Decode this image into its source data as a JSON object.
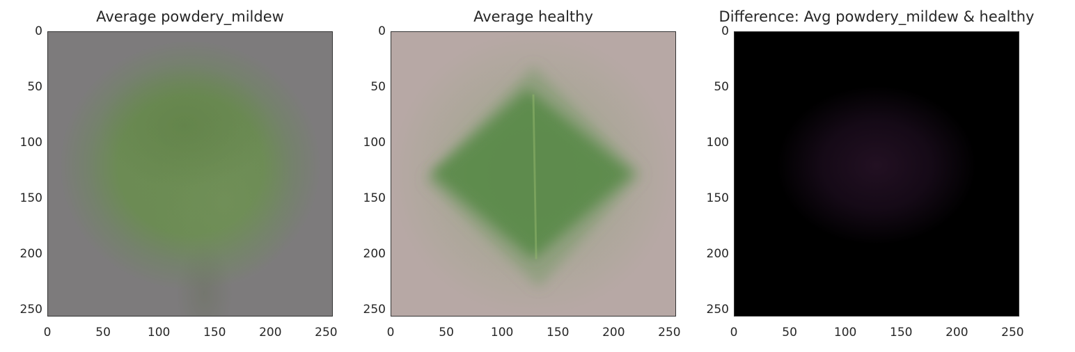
{
  "chart_data": [
    {
      "type": "heatmap",
      "title": "Average powdery_mildew",
      "image_content": "average image of powdery mildew leaves: diffuse green oval on grey background",
      "colors": {
        "background": "#7d7b7c",
        "leaf": "#6b8c52"
      },
      "xlim": [
        0,
        256
      ],
      "ylim": [
        256,
        0
      ],
      "xticks": [
        "0",
        "50",
        "100",
        "150",
        "200",
        "250"
      ],
      "yticks": [
        "0",
        "50",
        "100",
        "150",
        "200",
        "250"
      ]
    },
    {
      "type": "heatmap",
      "title": "Average healthy",
      "image_content": "average image of healthy leaves: green diamond-shaped leaf on light pinkish-grey background",
      "colors": {
        "background": "#b7a8a5",
        "leaf": "#5a8a4a"
      },
      "xlim": [
        0,
        256
      ],
      "ylim": [
        256,
        0
      ],
      "xticks": [
        "0",
        "50",
        "100",
        "150",
        "200",
        "250"
      ],
      "yticks": [
        "0",
        "50",
        "100",
        "150",
        "200",
        "250"
      ]
    },
    {
      "type": "heatmap",
      "title": "Difference: Avg powdery_mildew & healthy",
      "image_content": "difference image: almost black with a faint dark purple blob in the center",
      "colors": {
        "background": "#000000",
        "blob": "#1e0f1e"
      },
      "xlim": [
        0,
        256
      ],
      "ylim": [
        256,
        0
      ],
      "xticks": [
        "0",
        "50",
        "100",
        "150",
        "200",
        "250"
      ],
      "yticks": [
        "0",
        "50",
        "100",
        "150",
        "200",
        "250"
      ]
    }
  ]
}
